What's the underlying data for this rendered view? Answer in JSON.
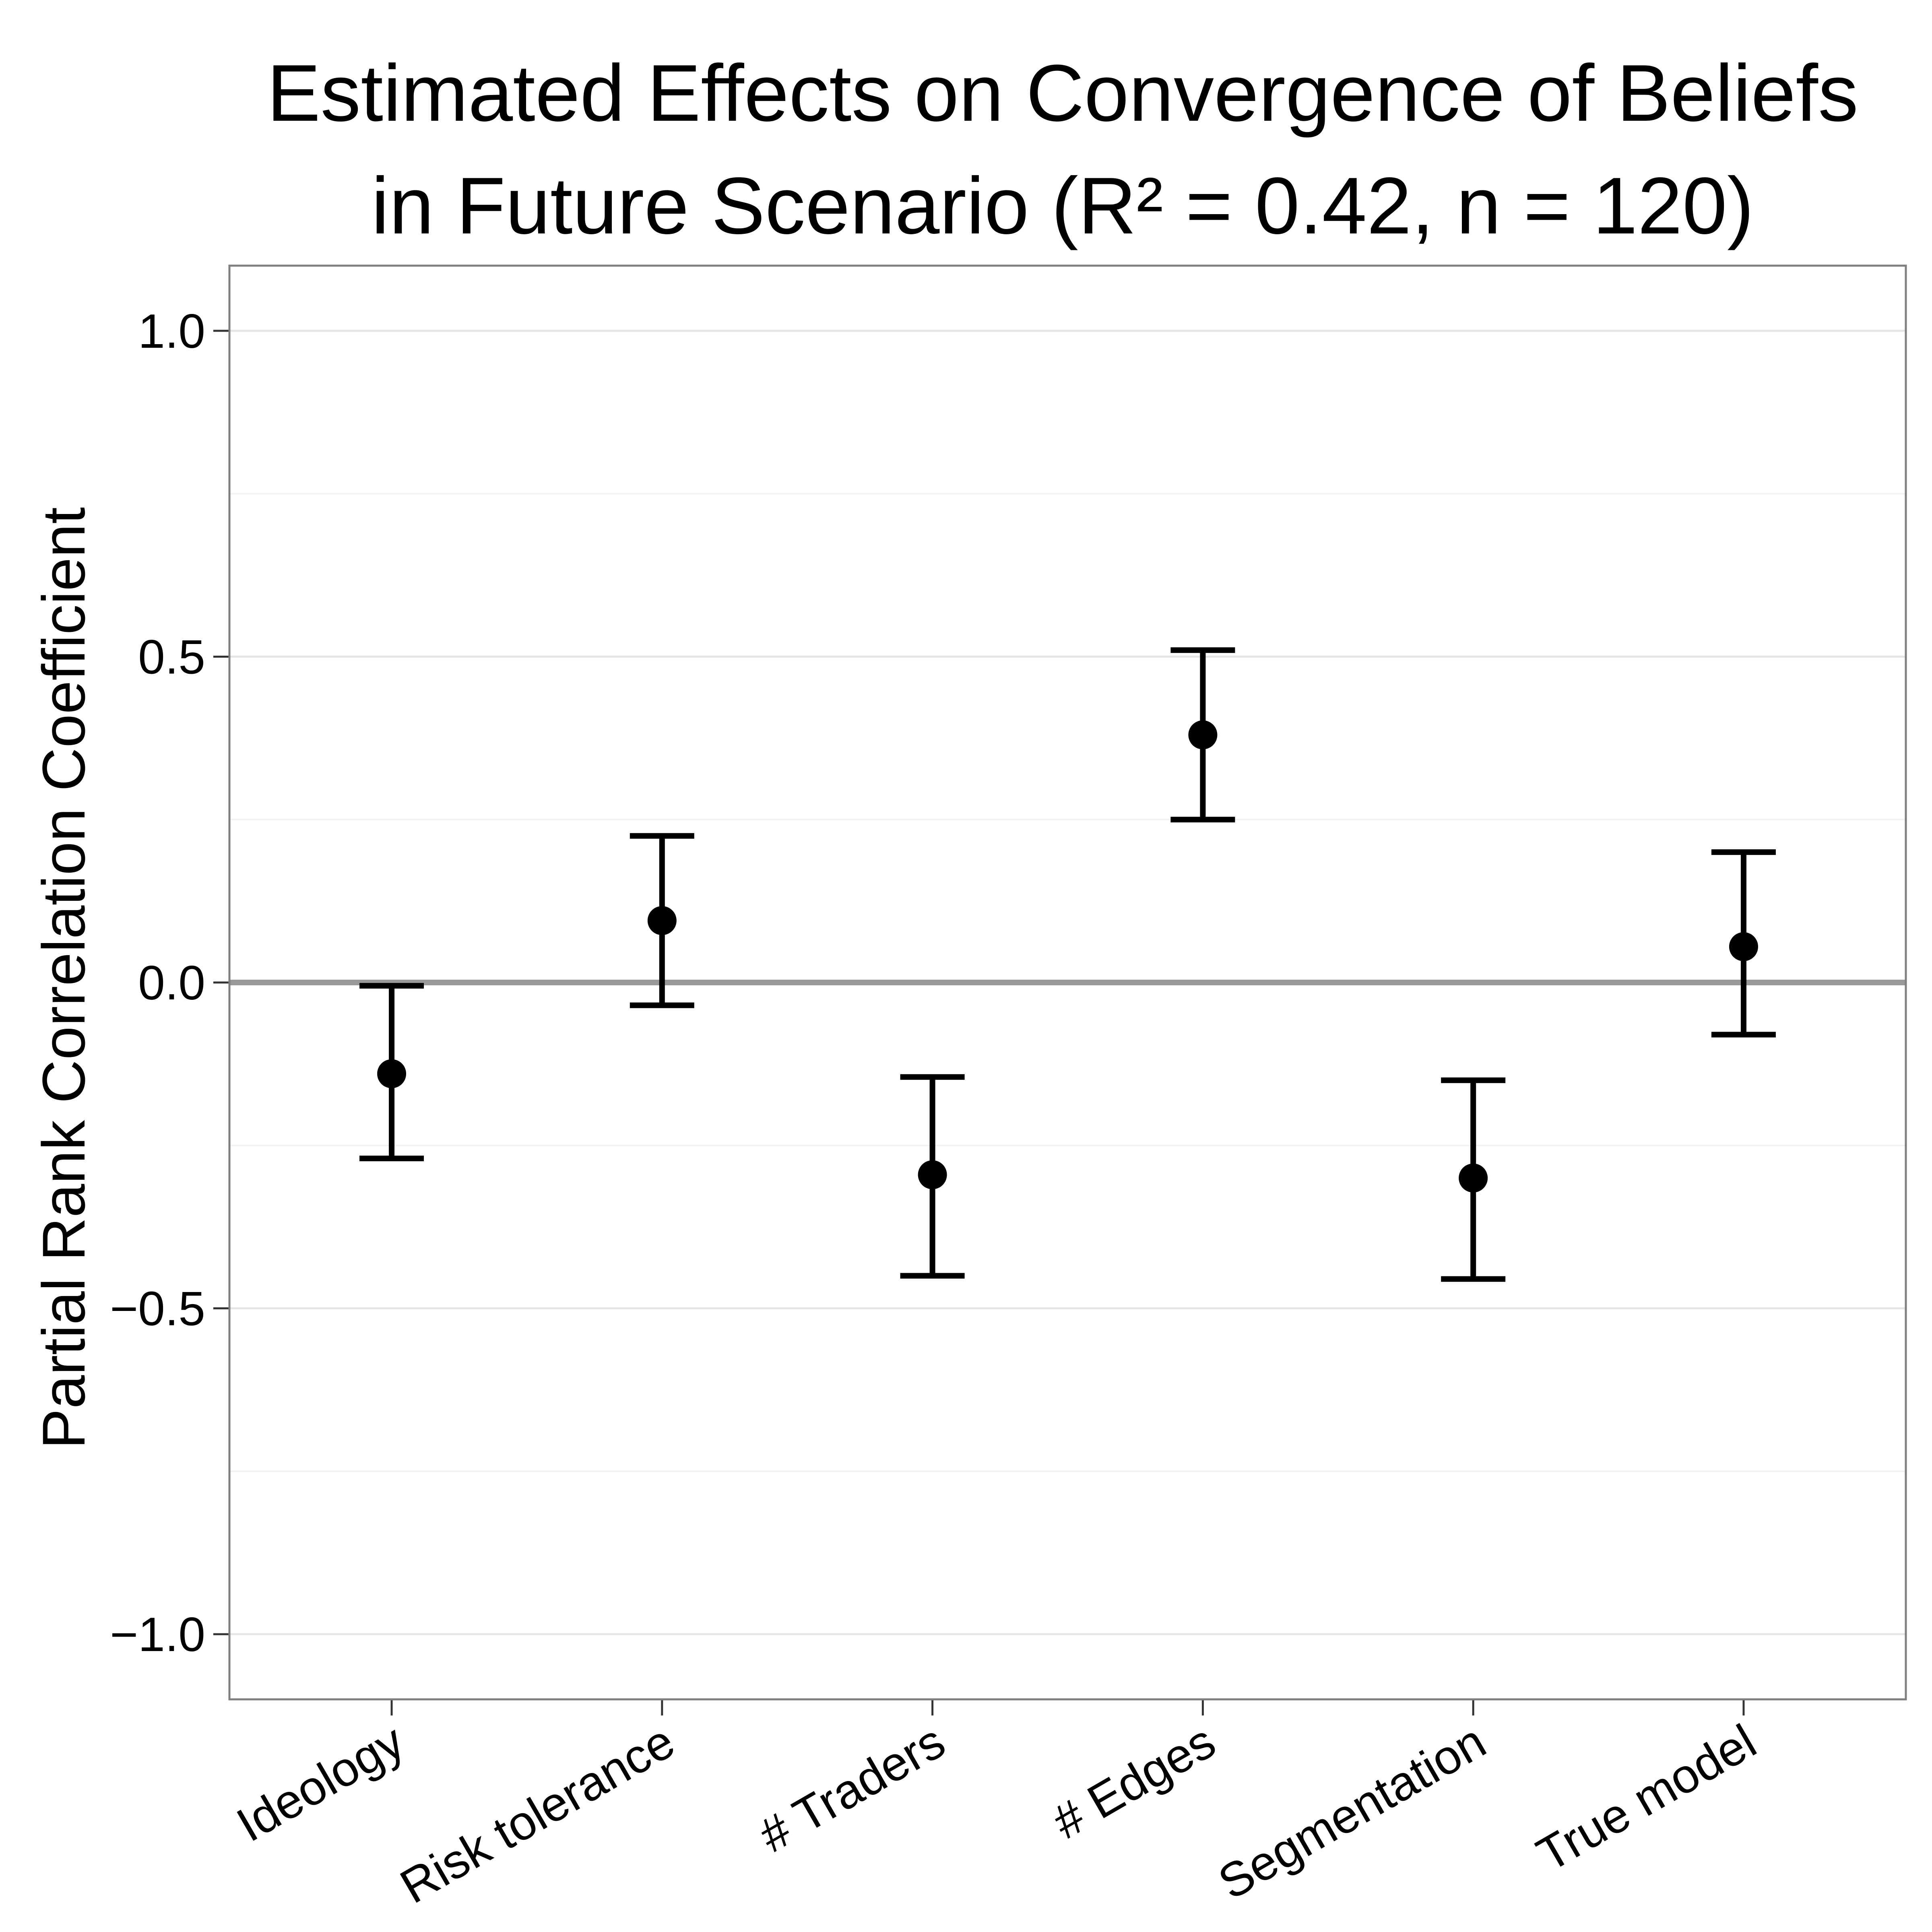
{
  "chart_data": {
    "type": "scatter",
    "title": "Estimated Effects on Convergence of Beliefs",
    "subtitle": "in Future Scenario (R² = 0.42, n = 120)",
    "xlabel": "",
    "ylabel": "Partial Rank Correlation Coefficient",
    "ylim": [
      -1.1,
      1.1
    ],
    "yticks": [
      "1.0",
      "0.5",
      "0.0",
      "−0.5",
      "−1.0"
    ],
    "ytick_values": [
      1.0,
      0.5,
      0.0,
      -0.5,
      -1.0
    ],
    "grid": true,
    "reference_line": 0.0,
    "reference_line_color": "#999999",
    "marker_color": "#000000",
    "categories": [
      "Ideology",
      "Risk tolerance",
      "# Traders",
      "# Edges",
      "Segmentation",
      "True model"
    ],
    "series": [
      {
        "values": [
          -0.14,
          0.095,
          -0.295,
          0.38,
          -0.3,
          0.055
        ],
        "lower": [
          -0.27,
          -0.035,
          -0.45,
          0.25,
          -0.455,
          -0.08
        ],
        "upper": [
          -0.005,
          0.225,
          -0.145,
          0.51,
          -0.15,
          0.2
        ]
      }
    ]
  }
}
